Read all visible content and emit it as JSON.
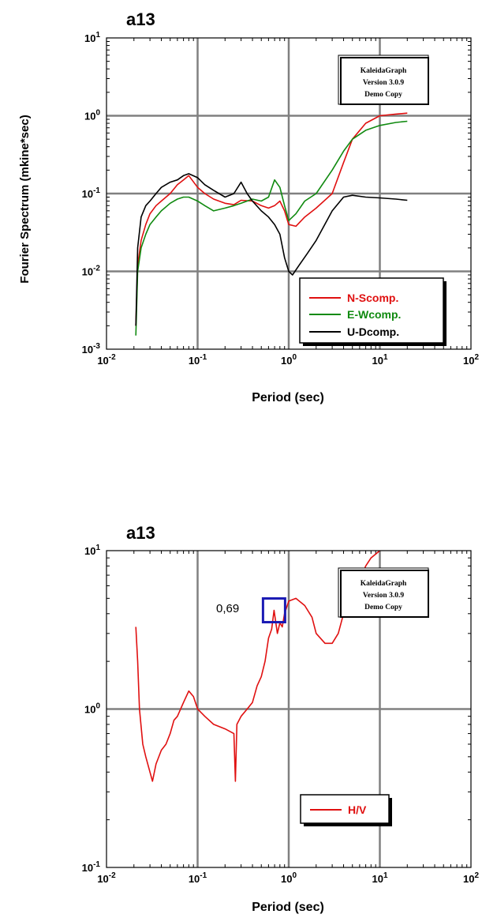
{
  "watermark": [
    "KaleidaGraph",
    "Version 3.0.9",
    "Demo Copy"
  ],
  "chart_data": [
    {
      "type": "line",
      "title": "a13",
      "xlabel": "Period (sec)",
      "ylabel": "Fourier Spectrum (mkine*sec)",
      "xscale": "log",
      "yscale": "log",
      "xlim": [
        0.01,
        100
      ],
      "ylim": [
        0.001,
        10
      ],
      "grid": true,
      "legend_position": "bottom-right",
      "series": [
        {
          "name": "N-Scomp.",
          "color": "#e01010",
          "x": [
            0.021,
            0.022,
            0.024,
            0.027,
            0.03,
            0.035,
            0.04,
            0.05,
            0.06,
            0.07,
            0.08,
            0.1,
            0.12,
            0.15,
            0.2,
            0.25,
            0.3,
            0.4,
            0.5,
            0.6,
            0.7,
            0.8,
            0.9,
            1.0,
            1.2,
            1.5,
            2.0,
            3.0,
            4.0,
            5.0,
            7.0,
            10.0,
            15.0,
            20.0
          ],
          "y": [
            0.002,
            0.012,
            0.025,
            0.04,
            0.055,
            0.07,
            0.08,
            0.1,
            0.13,
            0.15,
            0.17,
            0.12,
            0.1,
            0.085,
            0.075,
            0.072,
            0.082,
            0.08,
            0.07,
            0.065,
            0.07,
            0.08,
            0.06,
            0.04,
            0.038,
            0.05,
            0.065,
            0.1,
            0.25,
            0.5,
            0.8,
            1.0,
            1.05,
            1.08
          ]
        },
        {
          "name": "E-Wcomp.",
          "color": "#108a10",
          "x": [
            0.021,
            0.022,
            0.024,
            0.027,
            0.03,
            0.035,
            0.04,
            0.05,
            0.06,
            0.07,
            0.08,
            0.1,
            0.12,
            0.15,
            0.2,
            0.25,
            0.3,
            0.4,
            0.5,
            0.6,
            0.7,
            0.8,
            0.9,
            1.0,
            1.2,
            1.5,
            2.0,
            3.0,
            4.0,
            5.0,
            7.0,
            10.0,
            15.0,
            20.0
          ],
          "y": [
            0.0015,
            0.01,
            0.02,
            0.03,
            0.04,
            0.05,
            0.06,
            0.075,
            0.085,
            0.09,
            0.09,
            0.08,
            0.07,
            0.06,
            0.065,
            0.07,
            0.075,
            0.085,
            0.08,
            0.09,
            0.15,
            0.12,
            0.07,
            0.045,
            0.055,
            0.08,
            0.1,
            0.2,
            0.35,
            0.5,
            0.65,
            0.75,
            0.82,
            0.85
          ]
        },
        {
          "name": "U-Dcomp.",
          "color": "#000000",
          "x": [
            0.021,
            0.022,
            0.024,
            0.027,
            0.03,
            0.035,
            0.04,
            0.05,
            0.06,
            0.07,
            0.08,
            0.1,
            0.12,
            0.15,
            0.2,
            0.25,
            0.3,
            0.35,
            0.4,
            0.5,
            0.6,
            0.7,
            0.8,
            0.9,
            1.0,
            1.1,
            1.3,
            1.6,
            2.0,
            3.0,
            4.0,
            5.0,
            7.0,
            10.0,
            15.0,
            20.0
          ],
          "y": [
            0.002,
            0.02,
            0.05,
            0.07,
            0.08,
            0.1,
            0.12,
            0.14,
            0.15,
            0.17,
            0.18,
            0.16,
            0.13,
            0.11,
            0.09,
            0.1,
            0.14,
            0.1,
            0.08,
            0.06,
            0.05,
            0.04,
            0.03,
            0.015,
            0.01,
            0.009,
            0.012,
            0.017,
            0.025,
            0.06,
            0.09,
            0.095,
            0.09,
            0.088,
            0.085,
            0.082
          ]
        }
      ]
    },
    {
      "type": "line",
      "title": "a13",
      "xlabel": "Period (sec)",
      "ylabel": "",
      "xscale": "log",
      "yscale": "log",
      "xlim": [
        0.01,
        100
      ],
      "ylim": [
        0.1,
        10
      ],
      "grid": true,
      "legend_position": "bottom-right",
      "annotations": [
        {
          "text": "0,69",
          "x": 0.69,
          "y": 4.2,
          "marker": "square",
          "color": "#1a1ab4"
        }
      ],
      "series": [
        {
          "name": "H/V",
          "color": "#e01010",
          "x": [
            0.021,
            0.022,
            0.023,
            0.025,
            0.027,
            0.03,
            0.032,
            0.035,
            0.04,
            0.045,
            0.05,
            0.055,
            0.06,
            0.07,
            0.08,
            0.09,
            0.1,
            0.12,
            0.15,
            0.2,
            0.25,
            0.26,
            0.27,
            0.3,
            0.35,
            0.4,
            0.45,
            0.5,
            0.55,
            0.6,
            0.65,
            0.69,
            0.75,
            0.8,
            0.85,
            0.9,
            1.0,
            1.2,
            1.5,
            1.8,
            2.0,
            2.5,
            3.0,
            3.5,
            4.0,
            5.0,
            6.0,
            7.0,
            8.0,
            10.0
          ],
          "y": [
            3.3,
            2.0,
            1.0,
            0.6,
            0.5,
            0.4,
            0.35,
            0.45,
            0.55,
            0.6,
            0.7,
            0.85,
            0.9,
            1.1,
            1.3,
            1.2,
            1.0,
            0.9,
            0.8,
            0.75,
            0.7,
            0.35,
            0.8,
            0.9,
            1.0,
            1.1,
            1.4,
            1.6,
            2.0,
            2.8,
            3.2,
            4.2,
            3.0,
            3.5,
            3.3,
            4.0,
            4.8,
            5.0,
            4.5,
            3.8,
            3.0,
            2.6,
            2.6,
            3.0,
            4.0,
            5.0,
            6.5,
            8.0,
            9.0,
            10.0
          ]
        }
      ]
    }
  ]
}
